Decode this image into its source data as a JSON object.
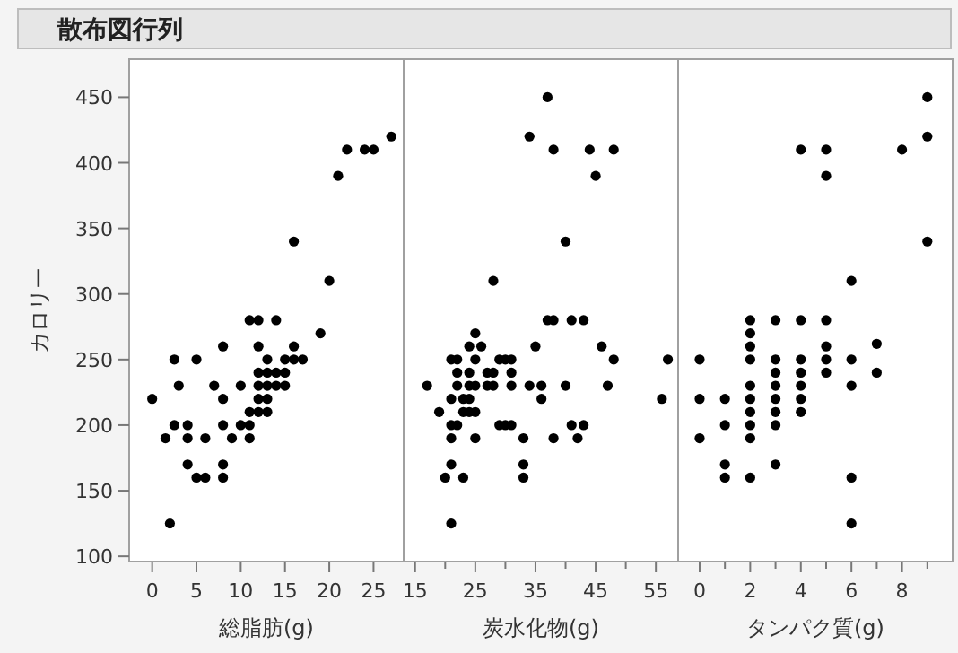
{
  "chart_data": [
    {
      "type": "scatter",
      "title": "散布図行列",
      "xlabel": "総脂肪(g)",
      "ylabel": "カロリー",
      "marker": "circle",
      "color": "#000000",
      "xlim": [
        -2.6,
        28.4
      ],
      "ylim": [
        96,
        479
      ],
      "xticks": [
        0,
        5,
        10,
        15,
        20,
        25
      ],
      "yticks": [
        100,
        150,
        200,
        250,
        300,
        350,
        400,
        450
      ],
      "x": [
        0,
        1.5,
        2.5,
        2.5,
        3,
        2,
        4,
        4,
        4,
        5,
        5,
        6,
        6,
        7,
        8,
        8,
        8,
        8,
        8,
        9,
        10,
        10,
        11,
        11,
        11,
        11,
        12,
        12,
        12,
        12,
        12,
        12,
        13,
        13,
        13,
        13,
        13,
        14,
        14,
        14,
        15,
        15,
        15,
        16,
        16,
        16,
        17,
        19,
        20,
        21,
        22,
        24,
        25,
        27
      ],
      "values": [
        220,
        190,
        250,
        200,
        230,
        125,
        200,
        190,
        170,
        250,
        160,
        160,
        190,
        230,
        260,
        220,
        200,
        170,
        160,
        190,
        230,
        200,
        200,
        190,
        210,
        280,
        280,
        260,
        240,
        230,
        220,
        210,
        250,
        240,
        230,
        220,
        210,
        280,
        240,
        230,
        250,
        240,
        230,
        340,
        260,
        250,
        250,
        270,
        310,
        390,
        410,
        410,
        410,
        420
      ]
    },
    {
      "type": "scatter",
      "xlabel": "炭水化物(g)",
      "marker": "circle",
      "color": "#000000",
      "xlim": [
        13.1,
        58.7
      ],
      "ylim": [
        96,
        479
      ],
      "xticks": [
        15,
        {
          "value": 20,
          "label": null
        },
        25,
        {
          "value": 30,
          "label": null
        },
        35,
        {
          "value": 40,
          "label": null
        },
        45,
        {
          "value": 50,
          "label": null
        },
        55
      ],
      "tick_labels": "x",
      "x": [
        37,
        34,
        38,
        44,
        48,
        45,
        40,
        28,
        37,
        38,
        41,
        43,
        25,
        24,
        26,
        35,
        46,
        21,
        22,
        25,
        29,
        30,
        31,
        48,
        57,
        22,
        24,
        27,
        28,
        31,
        17,
        22,
        24,
        25,
        27,
        28,
        31,
        34,
        36,
        40,
        47,
        21,
        23,
        24,
        36,
        56,
        19,
        23,
        24,
        25,
        21,
        22,
        29,
        30,
        31,
        41,
        43,
        21,
        25,
        33,
        38,
        42,
        21,
        33,
        20,
        23,
        33,
        21
      ],
      "values": [
        450,
        420,
        410,
        410,
        410,
        390,
        340,
        310,
        280,
        280,
        280,
        280,
        270,
        260,
        260,
        260,
        260,
        250,
        250,
        250,
        250,
        250,
        250,
        250,
        250,
        240,
        240,
        240,
        240,
        240,
        230,
        230,
        230,
        230,
        230,
        230,
        230,
        230,
        230,
        230,
        230,
        220,
        220,
        220,
        220,
        220,
        210,
        210,
        210,
        210,
        200,
        200,
        200,
        200,
        200,
        200,
        200,
        190,
        190,
        190,
        190,
        190,
        170,
        170,
        160,
        160,
        160,
        125
      ]
    },
    {
      "type": "scatter",
      "xlabel": "タンパク質(g)",
      "marker": "circle",
      "color": "#000000",
      "xlim": [
        -0.85,
        10
      ],
      "ylim": [
        96,
        479
      ],
      "xticks": [
        0,
        {
          "value": 1,
          "label": null
        },
        2,
        {
          "value": 3,
          "label": null
        },
        4,
        {
          "value": 5,
          "label": null
        },
        6,
        {
          "value": 7,
          "label": null
        },
        8,
        {
          "value": 9,
          "label": null
        }
      ],
      "tick_labels": "x",
      "x": [
        9,
        9,
        8,
        4,
        5,
        5,
        9,
        6,
        2,
        3,
        4,
        5,
        2,
        2,
        5,
        7,
        0,
        2,
        3,
        4,
        5,
        6,
        3,
        4,
        5,
        7,
        2,
        3,
        4,
        6,
        0,
        1,
        2,
        3,
        4,
        2,
        3,
        4,
        1,
        2,
        3,
        0,
        2,
        1,
        3,
        1,
        2,
        6,
        6
      ],
      "values": [
        450,
        420,
        410,
        410,
        410,
        390,
        340,
        310,
        280,
        280,
        280,
        280,
        270,
        260,
        260,
        262,
        250,
        250,
        250,
        250,
        250,
        250,
        240,
        240,
        240,
        240,
        230,
        230,
        230,
        230,
        220,
        220,
        220,
        220,
        220,
        210,
        210,
        210,
        200,
        200,
        200,
        190,
        190,
        170,
        170,
        160,
        160,
        160,
        125
      ]
    }
  ]
}
